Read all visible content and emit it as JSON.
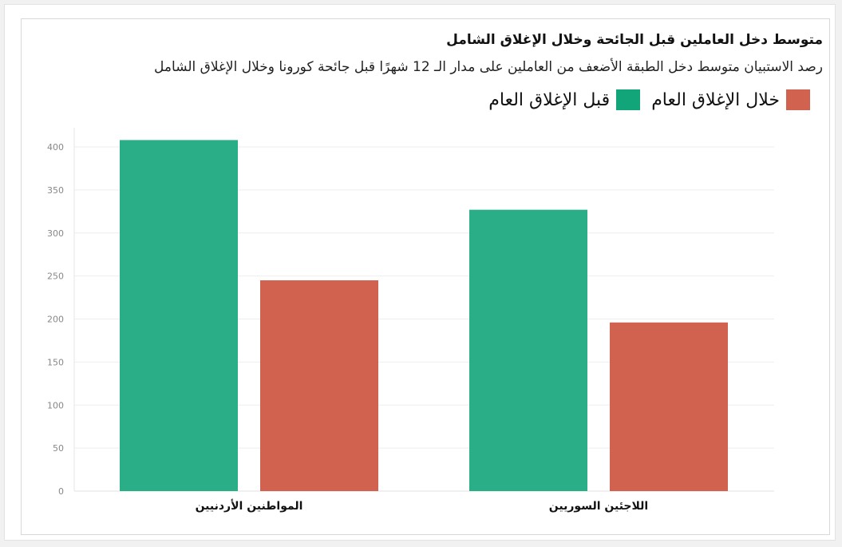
{
  "title": "متوسط دخل العاملين قبل الجائحة وخلال الإغلاق الشامل",
  "subtitle": "رصد الاستبيان متوسط دخل الطبقة الأضعف من العاملين على مدار الـ 12 شهرًا قبل جائحة كورونا وخلال الإغلاق الشامل",
  "legend": [
    {
      "label": "خلال الإغلاق العام",
      "color": "#d16250"
    },
    {
      "label": "قبل الإغلاق العام",
      "color": "#13a57a"
    }
  ],
  "chart_data": {
    "type": "bar",
    "categories": [
      "المواطنين الأردنيين",
      "اللاجئين السوريين"
    ],
    "series": [
      {
        "name": "قبل الإغلاق العام",
        "color": "#2aae87",
        "values": [
          408,
          327
        ]
      },
      {
        "name": "خلال الإغلاق العام",
        "color": "#d16250",
        "values": [
          245,
          196
        ]
      }
    ],
    "ylim": [
      0,
      400
    ],
    "yticks": [
      0,
      50,
      100,
      150,
      200,
      250,
      300,
      350,
      400
    ],
    "grid": true,
    "legend_position": "top-right"
  }
}
